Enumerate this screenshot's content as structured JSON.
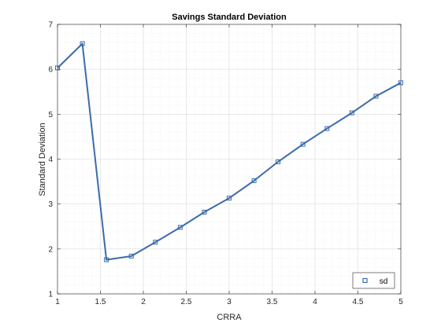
{
  "chart_data": {
    "type": "line",
    "title": "Savings Standard Deviation",
    "xlabel": "CRRA",
    "ylabel": "Standard Deviation",
    "xlim": [
      1,
      5
    ],
    "ylim": [
      1,
      7
    ],
    "xticks": [
      "1",
      "1.5",
      "2",
      "2.5",
      "3",
      "3.5",
      "4",
      "4.5",
      "5"
    ],
    "yticks": [
      "1",
      "2",
      "3",
      "4",
      "5",
      "6",
      "7"
    ],
    "grid": true,
    "minor_grid": true,
    "legend_position": "bottom-right",
    "series": [
      {
        "name": "sd",
        "color": "#3B6BAA",
        "marker": "square",
        "x": [
          1.0,
          1.29,
          1.57,
          1.86,
          2.14,
          2.43,
          2.71,
          3.0,
          3.29,
          3.57,
          3.86,
          4.14,
          4.43,
          4.71,
          5.0
        ],
        "y": [
          6.03,
          6.57,
          1.76,
          1.84,
          2.15,
          2.48,
          2.82,
          3.13,
          3.52,
          3.94,
          4.33,
          4.68,
          5.03,
          5.4,
          5.7
        ]
      }
    ]
  }
}
